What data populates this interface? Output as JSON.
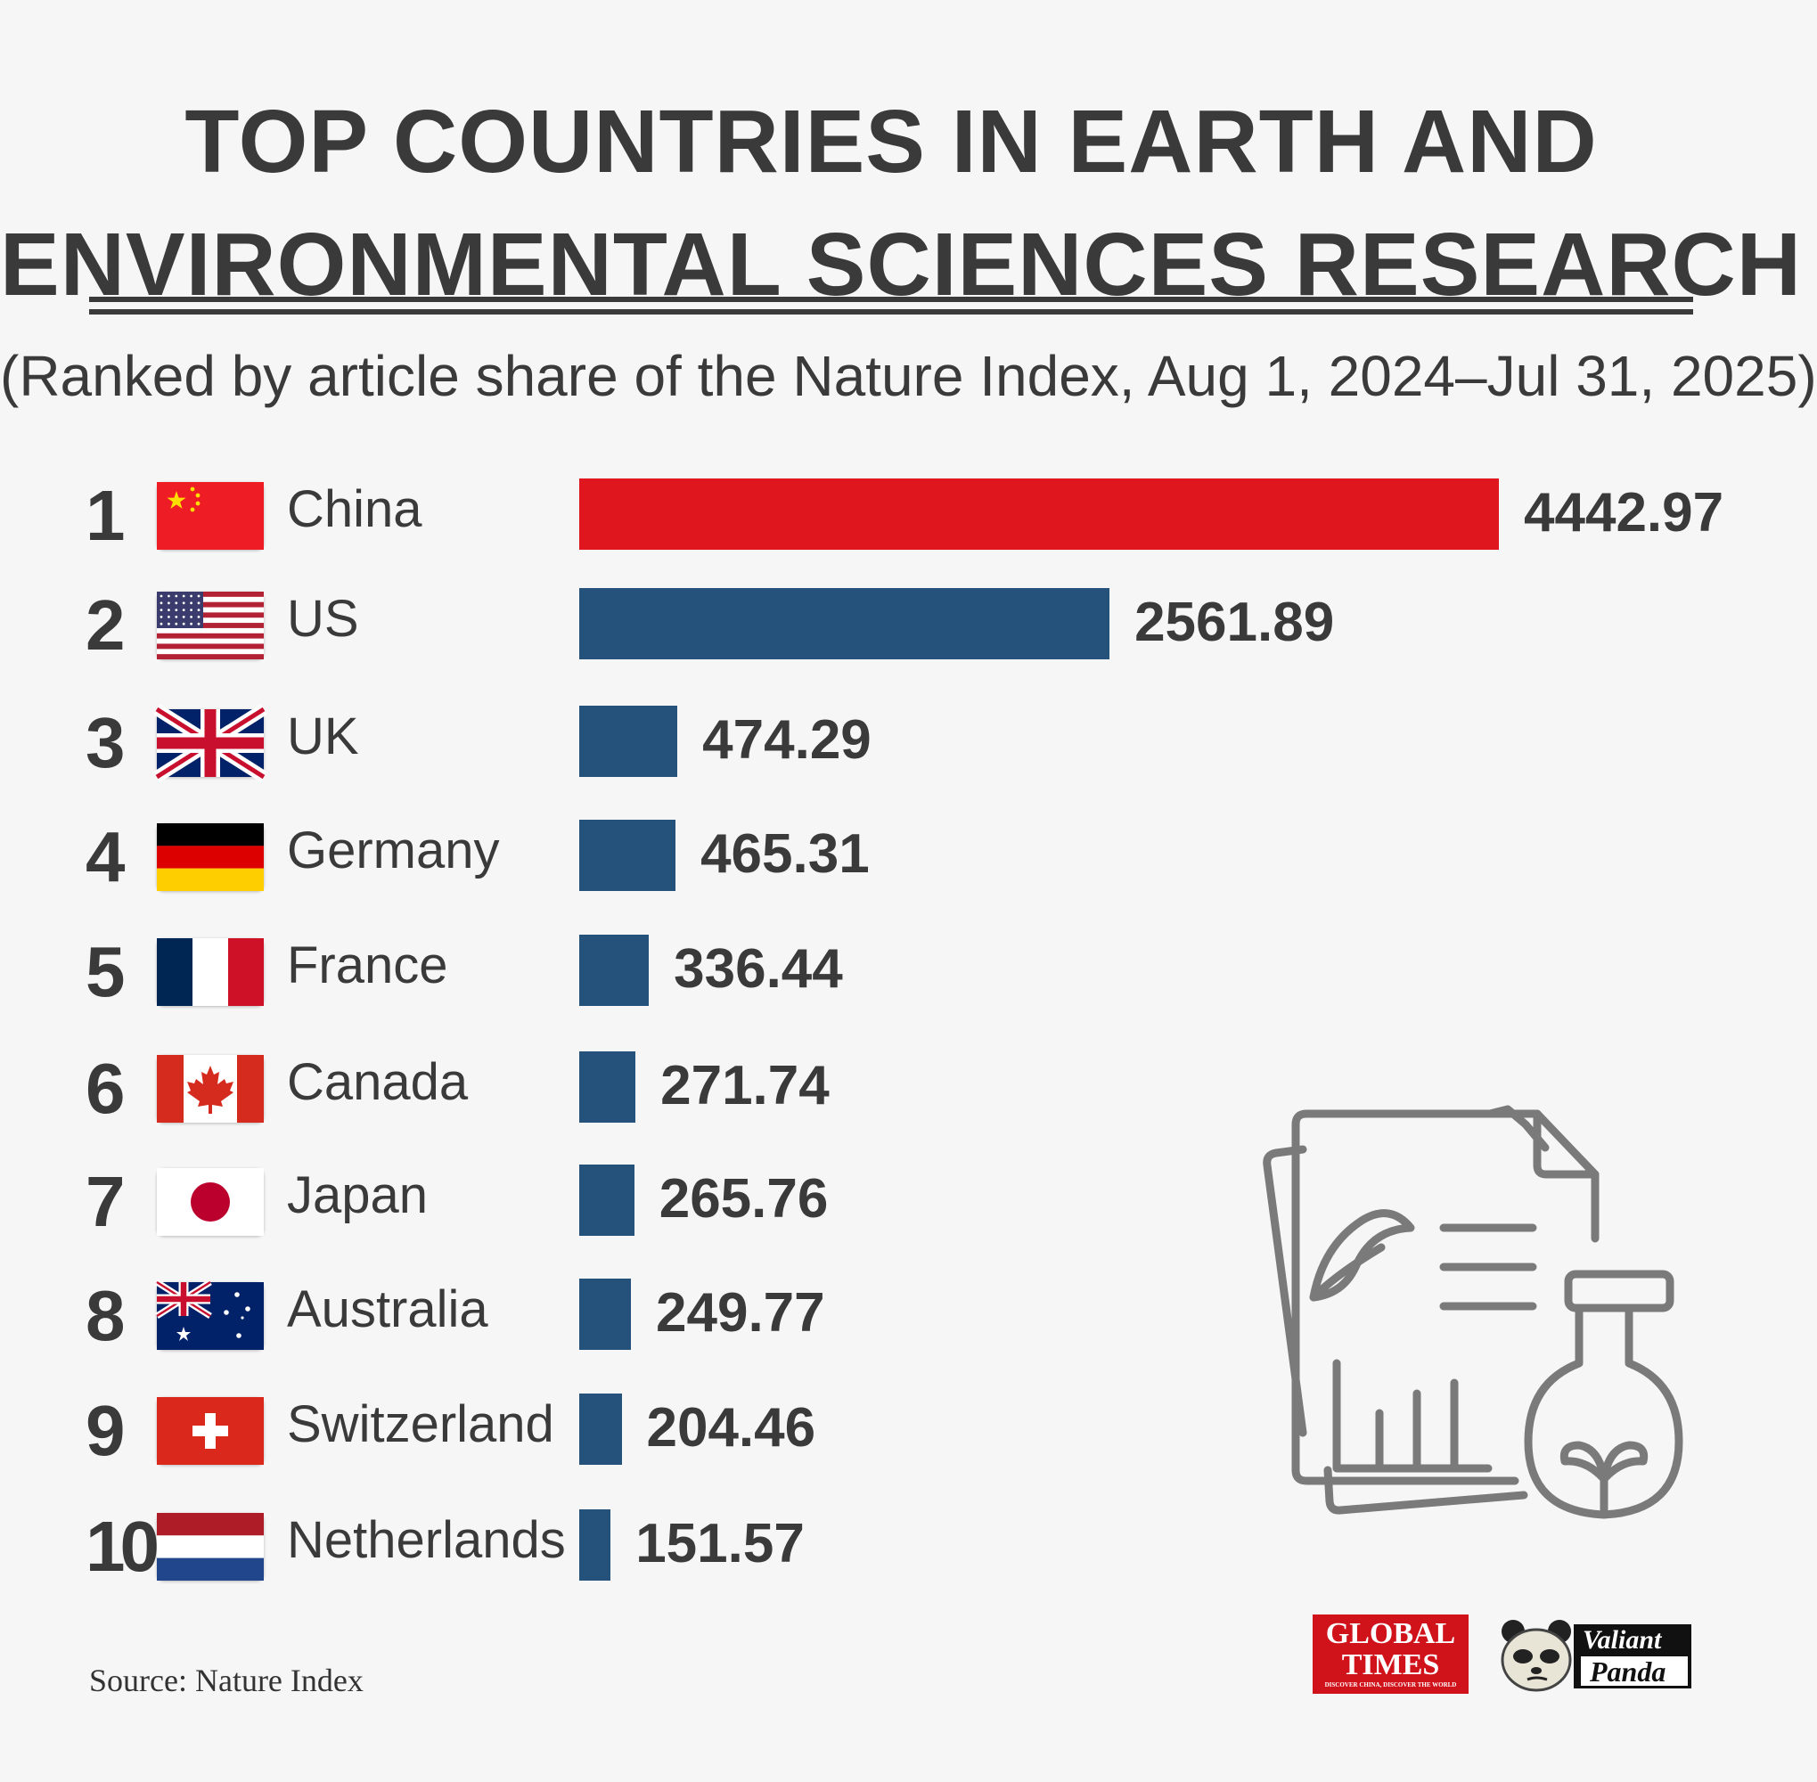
{
  "title_line1": "TOP COUNTRIES IN EARTH AND",
  "title_line2": "ENVIRONMENTAL SCIENCES RESEARCH",
  "subtitle": "(Ranked by article share of the Nature Index, Aug 1, 2024–Jul 31, 2025)",
  "source": "Source: Nature Index",
  "colors": {
    "highlight": "#e0161e",
    "bar": "#24527a",
    "text": "#3a3a3a",
    "background": "#f6f6f6"
  },
  "chart_data": {
    "type": "bar",
    "orientation": "horizontal",
    "categories": [
      "China",
      "US",
      "UK",
      "Germany",
      "France",
      "Canada",
      "Japan",
      "Australia",
      "Switzerland",
      "Netherlands"
    ],
    "ranks": [
      "1",
      "2",
      "3",
      "4",
      "5",
      "6",
      "7",
      "8",
      "9",
      "10"
    ],
    "values": [
      4442.97,
      2561.89,
      474.29,
      465.31,
      336.44,
      271.74,
      265.76,
      249.77,
      204.46,
      151.57
    ],
    "value_labels": [
      "4442.97",
      "2561.89",
      "474.29",
      "465.31",
      "336.44",
      "271.74",
      "265.76",
      "249.77",
      "204.46",
      "151.57"
    ],
    "flags": [
      "cn",
      "us",
      "gb",
      "de",
      "fr",
      "ca",
      "jp",
      "au",
      "ch",
      "nl"
    ],
    "xlim": [
      0,
      4442.97
    ],
    "bar_colors": [
      "#e0161e",
      "#24527a",
      "#24527a",
      "#24527a",
      "#24527a",
      "#24527a",
      "#24527a",
      "#24527a",
      "#24527a",
      "#24527a"
    ]
  },
  "logos": {
    "global_times": {
      "line1": "GLOBAL",
      "line2": "TIMES",
      "tagline": "DISCOVER CHINA, DISCOVER THE WORLD"
    },
    "valiant_panda": {
      "line1": "Valiant",
      "line2": "Panda"
    }
  },
  "illustration_icon": "research-document-flask-icon"
}
